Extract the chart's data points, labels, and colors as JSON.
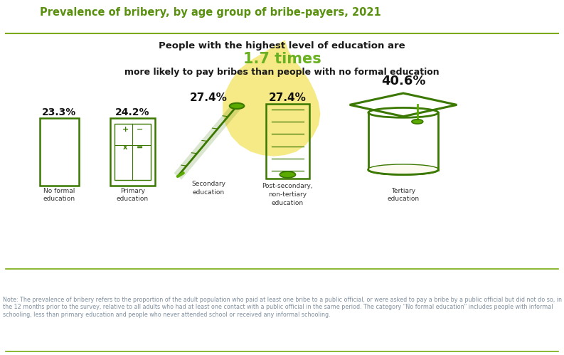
{
  "title": "Prevalence of bribery, by age group of bribe-payers, 2021",
  "title_color": "#5a9010",
  "bg_top": "#ffffff",
  "bg_main": "#fdfbf0",
  "separator_color": "#7aaa10",
  "headline_line1": "People with the highest level of education are",
  "headline_highlight": "1.7 times",
  "headline_line2": "more likely to pay bribes than people with no formal education",
  "highlight_color": "#6ab023",
  "headline_color": "#1a1a1a",
  "categories": [
    "No formal\neducation",
    "Primary\neducation",
    "Secondary\neducation",
    "Post-secondary,\nnon-tertiary\neducation",
    "Tertiary\neducation"
  ],
  "value_labels": [
    "23.3%",
    "24.2%",
    "27.4%",
    "27.4%",
    "40.6%"
  ],
  "icon_color": "#3a7800",
  "icon_color2": "#5aaa00",
  "note_color": "#8090a0",
  "note_text": "Note: The prevalence of bribery refers to the proportion of the adult population who paid at least one bribe to a public official, or were asked to pay a bribe by a public official but did not do so, in the 12 months prior to the survey, relative to all adults who had at least one contact with a public official in the same period. The category \"No formal education\" includes people with informal schooling, less than primary education and people who never attended school or received any informal schooling.",
  "map_color": "#f5e87a",
  "bg_note": "#fafafa"
}
